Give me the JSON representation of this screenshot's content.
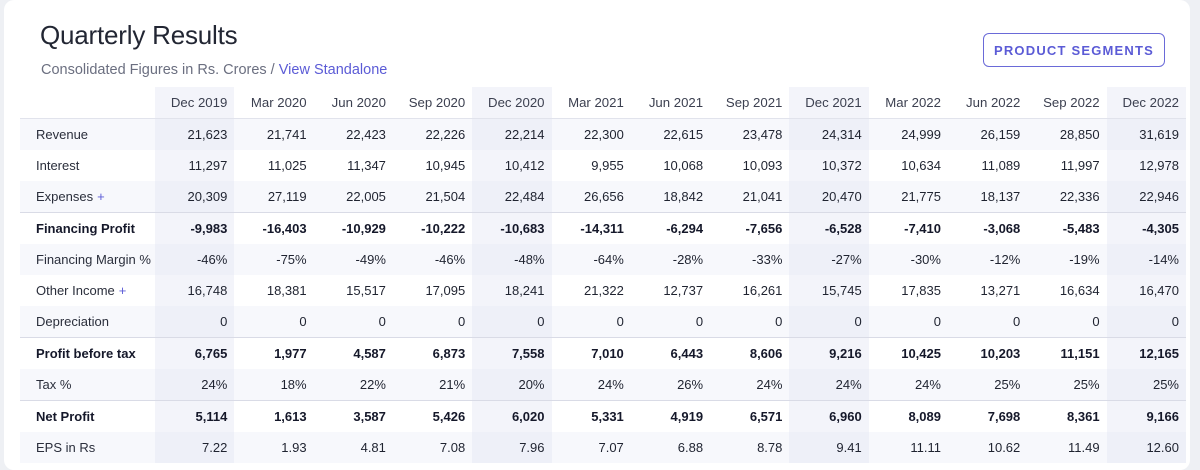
{
  "header": {
    "title": "Quarterly Results",
    "subtitle_prefix": "Consolidated Figures in Rs. Crores / ",
    "subtitle_link": "View Standalone",
    "segments_button": "PRODUCT SEGMENTS"
  },
  "table": {
    "columns": [
      "Dec 2019",
      "Mar 2020",
      "Jun 2020",
      "Sep 2020",
      "Dec 2020",
      "Mar 2021",
      "Jun 2021",
      "Sep 2021",
      "Dec 2021",
      "Mar 2022",
      "Jun 2022",
      "Sep 2022",
      "Dec 2022"
    ],
    "rows": [
      {
        "label": "Revenue",
        "expandable": false,
        "bold": false,
        "values": [
          "21,623",
          "21,741",
          "22,423",
          "22,226",
          "22,214",
          "22,300",
          "22,615",
          "23,478",
          "24,314",
          "24,999",
          "26,159",
          "28,850",
          "31,619"
        ]
      },
      {
        "label": "Interest",
        "expandable": false,
        "bold": false,
        "values": [
          "11,297",
          "11,025",
          "11,347",
          "10,945",
          "10,412",
          "9,955",
          "10,068",
          "10,093",
          "10,372",
          "10,634",
          "11,089",
          "11,997",
          "12,978"
        ]
      },
      {
        "label": "Expenses",
        "expandable": true,
        "bold": false,
        "values": [
          "20,309",
          "27,119",
          "22,005",
          "21,504",
          "22,484",
          "26,656",
          "18,842",
          "21,041",
          "20,470",
          "21,775",
          "18,137",
          "22,336",
          "22,946"
        ]
      },
      {
        "label": "Financing Profit",
        "expandable": false,
        "bold": true,
        "values": [
          "-9,983",
          "-16,403",
          "-10,929",
          "-10,222",
          "-10,683",
          "-14,311",
          "-6,294",
          "-7,656",
          "-6,528",
          "-7,410",
          "-3,068",
          "-5,483",
          "-4,305"
        ]
      },
      {
        "label": "Financing Margin %",
        "expandable": false,
        "bold": false,
        "values": [
          "-46%",
          "-75%",
          "-49%",
          "-46%",
          "-48%",
          "-64%",
          "-28%",
          "-33%",
          "-27%",
          "-30%",
          "-12%",
          "-19%",
          "-14%"
        ]
      },
      {
        "label": "Other Income",
        "expandable": true,
        "bold": false,
        "values": [
          "16,748",
          "18,381",
          "15,517",
          "17,095",
          "18,241",
          "21,322",
          "12,737",
          "16,261",
          "15,745",
          "17,835",
          "13,271",
          "16,634",
          "16,470"
        ]
      },
      {
        "label": "Depreciation",
        "expandable": false,
        "bold": false,
        "values": [
          "0",
          "0",
          "0",
          "0",
          "0",
          "0",
          "0",
          "0",
          "0",
          "0",
          "0",
          "0",
          "0"
        ]
      },
      {
        "label": "Profit before tax",
        "expandable": false,
        "bold": true,
        "values": [
          "6,765",
          "1,977",
          "4,587",
          "6,873",
          "7,558",
          "7,010",
          "6,443",
          "8,606",
          "9,216",
          "10,425",
          "10,203",
          "11,151",
          "12,165"
        ]
      },
      {
        "label": "Tax %",
        "expandable": false,
        "bold": false,
        "values": [
          "24%",
          "18%",
          "22%",
          "21%",
          "20%",
          "24%",
          "26%",
          "24%",
          "24%",
          "24%",
          "25%",
          "25%",
          "25%"
        ]
      },
      {
        "label": "Net Profit",
        "expandable": false,
        "bold": true,
        "values": [
          "5,114",
          "1,613",
          "3,587",
          "5,426",
          "6,020",
          "5,331",
          "4,919",
          "6,571",
          "6,960",
          "8,089",
          "7,698",
          "8,361",
          "9,166"
        ]
      },
      {
        "label": "EPS in Rs",
        "expandable": false,
        "bold": false,
        "values": [
          "7.22",
          "1.93",
          "4.81",
          "7.08",
          "7.96",
          "7.07",
          "6.88",
          "8.78",
          "9.41",
          "11.11",
          "10.62",
          "11.49",
          "12.60"
        ]
      }
    ],
    "expand_symbol": "+"
  }
}
